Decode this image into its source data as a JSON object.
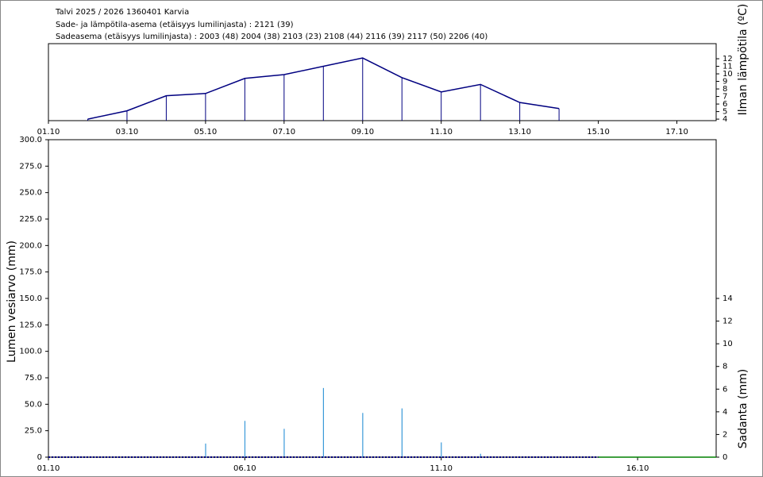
{
  "header": {
    "title": "Talvi 2025 / 2026 1360401 Karvia",
    "line1": "Sade- ja lämpötila-asema (etäisyys lumilinjasta) :  2121 (39)",
    "line2": "Sadeasema (etäisyys lumilinjasta) :  2003 (48) 2004 (38) 2103 (23) 2108 (44) 2116 (39) 2117 (50) 2206 (40)"
  },
  "chart_data": [
    {
      "type": "line",
      "y2_label": "Ilman lämpötila (ºC)",
      "xlim": [
        "01.10",
        "18.10"
      ],
      "xticks": [
        "01.10",
        "03.10",
        "05.10",
        "07.10",
        "09.10",
        "11.10",
        "13.10",
        "15.10",
        "17.10"
      ],
      "y2lim": [
        3.8,
        14
      ],
      "y2ticks": [
        4,
        5,
        6,
        7,
        8,
        9,
        10,
        11,
        12
      ],
      "series": [
        {
          "axis": "y2",
          "color": "#000080",
          "drop_lines": true,
          "x": [
            "02.10",
            "03.10",
            "04.10",
            "05.10",
            "06.10",
            "07.10",
            "08.10",
            "09.10",
            "10.10",
            "11.10",
            "12.10",
            "13.10",
            "14.10"
          ],
          "values": [
            4.0,
            5.1,
            7.1,
            7.4,
            9.4,
            9.9,
            11.0,
            12.1,
            9.5,
            7.6,
            8.6,
            6.2,
            5.4
          ]
        }
      ]
    },
    {
      "type": "bar",
      "y_label": "Lumen vesiarvo (mm)",
      "y2_label": "Sadanta (mm)",
      "xlim": [
        "01.10",
        "18.10"
      ],
      "xticks": [
        "01.10",
        "06.10",
        "11.10",
        "16.10"
      ],
      "ylim": [
        0,
        300
      ],
      "yticks": [
        0,
        {
          "value": 25,
          "label": "25.0"
        },
        {
          "value": 50,
          "label": "50.0"
        },
        {
          "value": 75,
          "label": "75.0"
        },
        {
          "value": 100,
          "label": "100.0"
        },
        {
          "value": 125,
          "label": "125.0"
        },
        {
          "value": 150,
          "label": "150.0"
        },
        {
          "value": 175,
          "label": "175.0"
        },
        {
          "value": 200,
          "label": "200.0"
        },
        {
          "value": 225,
          "label": "225.0"
        },
        {
          "value": 250,
          "label": "250.0"
        },
        {
          "value": 275,
          "label": "275.0"
        },
        {
          "value": 300,
          "label": "300.0"
        }
      ],
      "y2lim": [
        0,
        28
      ],
      "y2ticks": [
        0,
        2,
        4,
        6,
        8,
        10,
        12,
        14
      ],
      "series": [
        {
          "type": "bar",
          "axis": "y2",
          "color": "#3a9ad9",
          "x": [
            "05.10",
            "06.10",
            "07.10",
            "08.10",
            "09.10",
            "10.10",
            "11.10",
            "12.10"
          ],
          "values": [
            1.2,
            3.2,
            2.5,
            6.1,
            3.9,
            4.3,
            1.3,
            0.3
          ]
        },
        {
          "type": "line",
          "color": "#000080",
          "dashed": true,
          "x": [
            "01.10",
            "02.10",
            "03.10",
            "04.10",
            "05.10",
            "06.10",
            "07.10",
            "08.10",
            "09.10",
            "10.10",
            "11.10",
            "12.10",
            "13.10",
            "14.10",
            "15.10"
          ],
          "values": [
            0,
            0,
            0,
            0,
            0,
            0,
            0,
            0,
            0,
            0,
            0,
            0,
            0,
            0,
            0
          ]
        },
        {
          "type": "line",
          "color": "#008000",
          "x": [
            "15.10",
            "18.10"
          ],
          "values": [
            0,
            0
          ]
        }
      ]
    }
  ]
}
